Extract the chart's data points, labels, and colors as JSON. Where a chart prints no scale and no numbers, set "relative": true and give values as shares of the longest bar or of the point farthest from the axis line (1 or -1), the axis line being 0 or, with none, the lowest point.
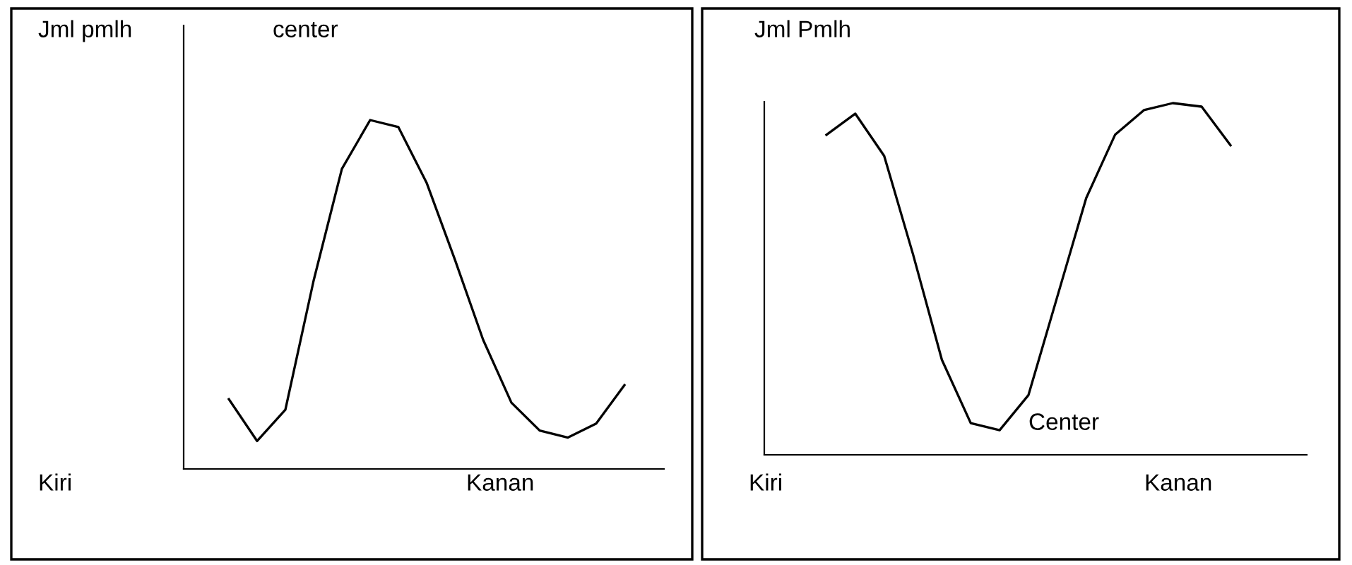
{
  "chart_data": [
    {
      "type": "line",
      "relative": true,
      "ylabel": "Jml pmlh",
      "annotations": [
        "center",
        "Kiri",
        "Kanan"
      ],
      "tick_labels": false,
      "color": "#000000",
      "categories": [
        null,
        null,
        null,
        null,
        null,
        null,
        null,
        null,
        null,
        null,
        null,
        null,
        null,
        null,
        null
      ],
      "values": [
        0.2,
        0.08,
        0.17,
        0.54,
        0.86,
        1,
        0.98,
        0.82,
        0.6,
        0.37,
        0.19,
        0.11,
        0.09,
        0.13,
        0.24
      ]
    },
    {
      "type": "line",
      "relative": true,
      "ylabel": "Jml Pmlh",
      "annotations": [
        "Center",
        "Kiri",
        "Kanan"
      ],
      "tick_labels": false,
      "color": "#000000",
      "categories": [
        null,
        null,
        null,
        null,
        null,
        null,
        null,
        null,
        null,
        null,
        null,
        null,
        null,
        null,
        null
      ],
      "values": [
        0.91,
        0.97,
        0.85,
        0.57,
        0.27,
        0.09,
        0.07,
        0.17,
        0.45,
        0.73,
        0.91,
        0.98,
        1,
        0.99,
        0.88
      ]
    }
  ]
}
